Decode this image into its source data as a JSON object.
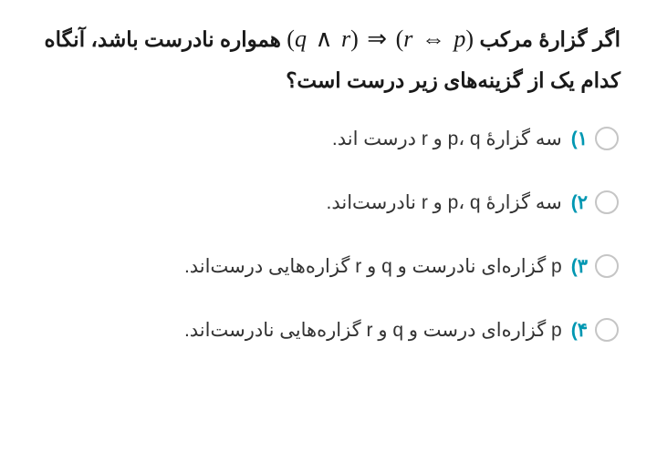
{
  "question": {
    "part1": "اگر گزارهٔ مرکب ",
    "formula_html": "<span class='paren'>(</span>q <span class='op'>∧</span> r<span class='paren'>)</span> <span class='op'>⇒</span> <span class='paren'>(</span>r <span class='op'>⇔</span> p<span class='paren'>)</span>",
    "part2": " همواره نادرست باشد، آنگاه کدام یک از گزینه‌های زیر درست است؟"
  },
  "options": [
    {
      "num": "۱",
      "text": "سه گزارهٔ p، q و r درست اند."
    },
    {
      "num": "۲",
      "text": "سه گزارهٔ p، q و r نادرست‌اند."
    },
    {
      "num": "۳",
      "text": "p گزاره‌ای نادرست و q و r گزاره‌هایی درست‌اند."
    },
    {
      "num": "۴",
      "text": "p گزاره‌ای درست و q و r گزاره‌هایی نادرست‌اند."
    }
  ],
  "colors": {
    "accent": "#0097b2",
    "text": "#1a1a1a",
    "option_text": "#333333",
    "radio_border": "#c5c5c5",
    "background": "#ffffff"
  },
  "typography": {
    "question_fontsize": 23,
    "option_fontsize": 21,
    "formula_fontsize": 26
  }
}
